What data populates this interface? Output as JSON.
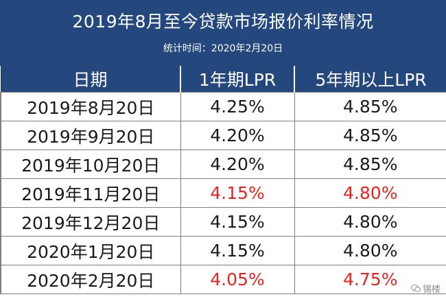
{
  "header": {
    "title": "2019年8月至今贷款市场报价利率情况",
    "subtitle": "统计时间：2020年2月20日"
  },
  "table": {
    "columns": [
      "日期",
      "1年期LPR",
      "5年期以上LPR"
    ],
    "rows": [
      {
        "date": "2019年8月20日",
        "lpr1": "4.25%",
        "lpr5": "4.85%",
        "highlight": false
      },
      {
        "date": "2019年9月20日",
        "lpr1": "4.20%",
        "lpr5": "4.85%",
        "highlight": false
      },
      {
        "date": "2019年10月20日",
        "lpr1": "4.20%",
        "lpr5": "4.85%",
        "highlight": false
      },
      {
        "date": "2019年11月20日",
        "lpr1": "4.15%",
        "lpr5": "4.80%",
        "highlight": true
      },
      {
        "date": "2019年12月20日",
        "lpr1": "4.15%",
        "lpr5": "4.80%",
        "highlight": false
      },
      {
        "date": "2020年1月20日",
        "lpr1": "4.15%",
        "lpr5": "4.80%",
        "highlight": false
      },
      {
        "date": "2020年2月20日",
        "lpr1": "4.05%",
        "lpr5": "4.75%",
        "highlight": true
      }
    ]
  },
  "watermark": {
    "text": "锡楼",
    "icon": "wechat-icon"
  },
  "colors": {
    "header_bg": "#24477d",
    "highlight": "#e8231f",
    "border": "#7f7f7f"
  }
}
